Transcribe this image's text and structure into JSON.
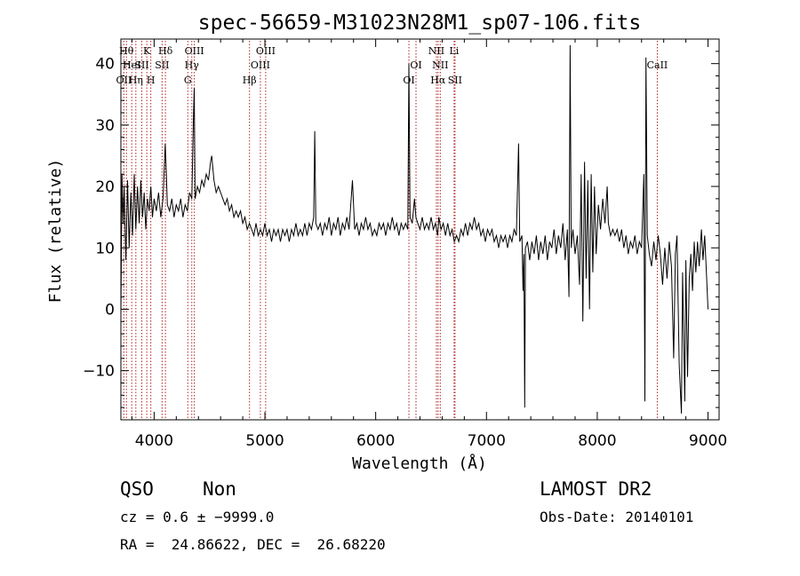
{
  "chart_data": {
    "type": "line",
    "title": "spec-56659-M31023N28M1_sp07-106.fits",
    "xlabel": "Wavelength (Å)",
    "ylabel": "Flux (relative)",
    "xlim": [
      3700,
      9100
    ],
    "ylim": [
      -18,
      44
    ],
    "x_ticks": [
      4000,
      5000,
      6000,
      7000,
      8000,
      9000
    ],
    "y_ticks": [
      -10,
      0,
      10,
      20,
      30,
      40
    ],
    "x_tick_labels": [
      "4000",
      "5000",
      "6000",
      "7000",
      "8000",
      "9000"
    ],
    "y_tick_labels": [
      "−10",
      "0",
      "10",
      "20",
      "30",
      "40"
    ],
    "grid": false,
    "line_color": "#000000",
    "marker_color": "#b22222",
    "spectrum": [
      [
        3700,
        -1
      ],
      [
        3710,
        22
      ],
      [
        3720,
        14
      ],
      [
        3730,
        20
      ],
      [
        3745,
        8
      ],
      [
        3760,
        21
      ],
      [
        3775,
        10
      ],
      [
        3790,
        19
      ],
      [
        3805,
        12
      ],
      [
        3820,
        22
      ],
      [
        3835,
        13
      ],
      [
        3850,
        20
      ],
      [
        3865,
        14
      ],
      [
        3880,
        21
      ],
      [
        3895,
        15
      ],
      [
        3910,
        19
      ],
      [
        3925,
        13
      ],
      [
        3940,
        18
      ],
      [
        3955,
        16
      ],
      [
        3970,
        20
      ],
      [
        3985,
        15
      ],
      [
        4000,
        18
      ],
      [
        4020,
        16
      ],
      [
        4040,
        19
      ],
      [
        4060,
        15
      ],
      [
        4080,
        18
      ],
      [
        4100,
        27
      ],
      [
        4120,
        17
      ],
      [
        4140,
        16
      ],
      [
        4160,
        18
      ],
      [
        4180,
        15
      ],
      [
        4200,
        17
      ],
      [
        4220,
        16
      ],
      [
        4240,
        18
      ],
      [
        4260,
        15
      ],
      [
        4280,
        17
      ],
      [
        4300,
        16
      ],
      [
        4320,
        19
      ],
      [
        4340,
        18
      ],
      [
        4355,
        31
      ],
      [
        4362,
        36
      ],
      [
        4370,
        18
      ],
      [
        4390,
        20
      ],
      [
        4410,
        19
      ],
      [
        4430,
        21
      ],
      [
        4450,
        20
      ],
      [
        4470,
        22
      ],
      [
        4490,
        21
      ],
      [
        4510,
        24
      ],
      [
        4520,
        25
      ],
      [
        4540,
        21
      ],
      [
        4560,
        19
      ],
      [
        4580,
        20
      ],
      [
        4600,
        19
      ],
      [
        4620,
        18
      ],
      [
        4640,
        17
      ],
      [
        4660,
        18
      ],
      [
        4680,
        16
      ],
      [
        4700,
        17
      ],
      [
        4720,
        15
      ],
      [
        4740,
        16
      ],
      [
        4760,
        15
      ],
      [
        4780,
        16
      ],
      [
        4800,
        14
      ],
      [
        4820,
        15
      ],
      [
        4840,
        13
      ],
      [
        4860,
        14
      ],
      [
        4880,
        13
      ],
      [
        4900,
        12
      ],
      [
        4920,
        14
      ],
      [
        4940,
        12
      ],
      [
        4960,
        13
      ],
      [
        4980,
        12
      ],
      [
        5000,
        14
      ],
      [
        5020,
        12
      ],
      [
        5040,
        13
      ],
      [
        5060,
        11
      ],
      [
        5080,
        13
      ],
      [
        5100,
        12
      ],
      [
        5120,
        13
      ],
      [
        5140,
        11
      ],
      [
        5160,
        13
      ],
      [
        5180,
        12
      ],
      [
        5200,
        13
      ],
      [
        5220,
        11
      ],
      [
        5240,
        13
      ],
      [
        5260,
        12
      ],
      [
        5280,
        14
      ],
      [
        5300,
        12
      ],
      [
        5320,
        13
      ],
      [
        5340,
        12
      ],
      [
        5360,
        14
      ],
      [
        5380,
        12
      ],
      [
        5400,
        14
      ],
      [
        5420,
        13
      ],
      [
        5440,
        15
      ],
      [
        5450,
        29
      ],
      [
        5460,
        14
      ],
      [
        5480,
        13
      ],
      [
        5500,
        14
      ],
      [
        5520,
        12
      ],
      [
        5540,
        14
      ],
      [
        5560,
        13
      ],
      [
        5580,
        15
      ],
      [
        5600,
        12
      ],
      [
        5620,
        14
      ],
      [
        5640,
        13
      ],
      [
        5660,
        15
      ],
      [
        5680,
        12
      ],
      [
        5700,
        14
      ],
      [
        5720,
        13
      ],
      [
        5740,
        15
      ],
      [
        5760,
        13
      ],
      [
        5790,
        21
      ],
      [
        5810,
        13
      ],
      [
        5830,
        14
      ],
      [
        5850,
        12
      ],
      [
        5870,
        14
      ],
      [
        5890,
        13
      ],
      [
        5910,
        15
      ],
      [
        5930,
        13
      ],
      [
        5950,
        14
      ],
      [
        5970,
        12
      ],
      [
        5990,
        13
      ],
      [
        6010,
        12
      ],
      [
        6030,
        14
      ],
      [
        6050,
        13
      ],
      [
        6070,
        14
      ],
      [
        6090,
        12
      ],
      [
        6110,
        14
      ],
      [
        6130,
        13
      ],
      [
        6150,
        15
      ],
      [
        6170,
        13
      ],
      [
        6190,
        14
      ],
      [
        6210,
        12
      ],
      [
        6230,
        14
      ],
      [
        6250,
        13
      ],
      [
        6270,
        14
      ],
      [
        6290,
        13
      ],
      [
        6300,
        40
      ],
      [
        6310,
        15
      ],
      [
        6330,
        14
      ],
      [
        6350,
        18
      ],
      [
        6363,
        15
      ],
      [
        6380,
        14
      ],
      [
        6400,
        13
      ],
      [
        6420,
        15
      ],
      [
        6440,
        13
      ],
      [
        6460,
        14
      ],
      [
        6480,
        13
      ],
      [
        6500,
        15
      ],
      [
        6520,
        13
      ],
      [
        6540,
        14
      ],
      [
        6560,
        12
      ],
      [
        6570,
        15
      ],
      [
        6590,
        13
      ],
      [
        6610,
        14
      ],
      [
        6630,
        12
      ],
      [
        6650,
        14
      ],
      [
        6670,
        12
      ],
      [
        6690,
        13
      ],
      [
        6710,
        11
      ],
      [
        6730,
        12
      ],
      [
        6750,
        11
      ],
      [
        6770,
        13
      ],
      [
        6790,
        12
      ],
      [
        6810,
        14
      ],
      [
        6830,
        12
      ],
      [
        6850,
        14
      ],
      [
        6870,
        13
      ],
      [
        6890,
        15
      ],
      [
        6910,
        13
      ],
      [
        6930,
        14
      ],
      [
        6950,
        12
      ],
      [
        6970,
        13
      ],
      [
        6990,
        11
      ],
      [
        7010,
        13
      ],
      [
        7030,
        12
      ],
      [
        7050,
        13
      ],
      [
        7070,
        11
      ],
      [
        7090,
        12
      ],
      [
        7110,
        10
      ],
      [
        7130,
        12
      ],
      [
        7150,
        11
      ],
      [
        7170,
        12
      ],
      [
        7190,
        10
      ],
      [
        7210,
        12
      ],
      [
        7230,
        11
      ],
      [
        7250,
        13
      ],
      [
        7270,
        12
      ],
      [
        7290,
        27
      ],
      [
        7300,
        11
      ],
      [
        7320,
        12
      ],
      [
        7330,
        3
      ],
      [
        7338,
        9
      ],
      [
        7345,
        -16
      ],
      [
        7352,
        10
      ],
      [
        7370,
        11
      ],
      [
        7390,
        8
      ],
      [
        7410,
        11
      ],
      [
        7430,
        9
      ],
      [
        7450,
        12
      ],
      [
        7470,
        8
      ],
      [
        7490,
        11
      ],
      [
        7510,
        9
      ],
      [
        7530,
        12
      ],
      [
        7550,
        8
      ],
      [
        7570,
        11
      ],
      [
        7590,
        10
      ],
      [
        7610,
        13
      ],
      [
        7630,
        9
      ],
      [
        7650,
        12
      ],
      [
        7670,
        10
      ],
      [
        7690,
        14
      ],
      [
        7710,
        8
      ],
      [
        7730,
        13
      ],
      [
        7745,
        2
      ],
      [
        7755,
        43
      ],
      [
        7765,
        10
      ],
      [
        7780,
        13
      ],
      [
        7800,
        9
      ],
      [
        7820,
        12
      ],
      [
        7840,
        4
      ],
      [
        7855,
        22
      ],
      [
        7870,
        -2
      ],
      [
        7885,
        24
      ],
      [
        7900,
        5
      ],
      [
        7915,
        21
      ],
      [
        7930,
        0
      ],
      [
        7945,
        22
      ],
      [
        7960,
        6
      ],
      [
        7975,
        20
      ],
      [
        7990,
        9
      ],
      [
        8010,
        17
      ],
      [
        8030,
        13
      ],
      [
        8050,
        18
      ],
      [
        8070,
        14
      ],
      [
        8090,
        20
      ],
      [
        8100,
        14
      ],
      [
        8120,
        12
      ],
      [
        8140,
        13
      ],
      [
        8160,
        12
      ],
      [
        8180,
        13
      ],
      [
        8200,
        11
      ],
      [
        8220,
        13
      ],
      [
        8240,
        10
      ],
      [
        8260,
        12
      ],
      [
        8280,
        9
      ],
      [
        8300,
        11
      ],
      [
        8320,
        10
      ],
      [
        8340,
        12
      ],
      [
        8360,
        9
      ],
      [
        8380,
        11
      ],
      [
        8400,
        10
      ],
      [
        8420,
        22
      ],
      [
        8430,
        -15
      ],
      [
        8440,
        41
      ],
      [
        8452,
        12
      ],
      [
        8470,
        9
      ],
      [
        8490,
        7
      ],
      [
        8510,
        11
      ],
      [
        8530,
        8
      ],
      [
        8550,
        12
      ],
      [
        8570,
        9
      ],
      [
        8590,
        4
      ],
      [
        8610,
        10
      ],
      [
        8630,
        5
      ],
      [
        8650,
        11
      ],
      [
        8670,
        7
      ],
      [
        8690,
        -8
      ],
      [
        8705,
        9
      ],
      [
        8720,
        12
      ],
      [
        8740,
        -9
      ],
      [
        8760,
        -17
      ],
      [
        8770,
        6
      ],
      [
        8790,
        -15
      ],
      [
        8800,
        8
      ],
      [
        8815,
        -11
      ],
      [
        8830,
        5
      ],
      [
        8845,
        9
      ],
      [
        8860,
        3
      ],
      [
        8875,
        11
      ],
      [
        8890,
        6
      ],
      [
        8905,
        11
      ],
      [
        8920,
        7
      ],
      [
        8940,
        13
      ],
      [
        8955,
        8
      ],
      [
        8970,
        12
      ],
      [
        8985,
        6
      ],
      [
        9000,
        0
      ]
    ],
    "line_markers": [
      {
        "wavelength": 3727,
        "label": "OII",
        "row": 3
      },
      {
        "wavelength": 3750,
        "label": "Hθ",
        "row": 1
      },
      {
        "wavelength": 3798,
        "label": "HeI",
        "row": 2
      },
      {
        "wavelength": 3835,
        "label": "Hη",
        "row": 3
      },
      {
        "wavelength": 3889,
        "label": "SII",
        "row": 2
      },
      {
        "wavelength": 3934,
        "label": "K",
        "row": 1
      },
      {
        "wavelength": 3970,
        "label": "H",
        "row": 3
      },
      {
        "wavelength": 4102,
        "label": "Hδ",
        "row": 1
      },
      {
        "wavelength": 4072,
        "label": "SII",
        "row": 2
      },
      {
        "wavelength": 4304,
        "label": "G",
        "row": 3
      },
      {
        "wavelength": 4340,
        "label": "Hγ",
        "row": 2
      },
      {
        "wavelength": 4363,
        "label": "OIII",
        "row": 1
      },
      {
        "wavelength": 4861,
        "label": "Hβ",
        "row": 3
      },
      {
        "wavelength": 4959,
        "label": "OIII",
        "row": 2
      },
      {
        "wavelength": 5007,
        "label": "OIII",
        "row": 1
      },
      {
        "wavelength": 6300,
        "label": "OI",
        "row": 3
      },
      {
        "wavelength": 6364,
        "label": "OI",
        "row": 2
      },
      {
        "wavelength": 6548,
        "label": "NII",
        "row": 1
      },
      {
        "wavelength": 6563,
        "label": "Hα",
        "row": 3
      },
      {
        "wavelength": 6583,
        "label": "NII",
        "row": 2
      },
      {
        "wavelength": 6708,
        "label": "Li",
        "row": 1
      },
      {
        "wavelength": 6716,
        "label": "SII",
        "row": 3
      },
      {
        "wavelength": 8542,
        "label": "CaII",
        "row": 2
      }
    ]
  },
  "info": {
    "class": "QSO",
    "subclass": "Non",
    "survey": "LAMOST DR2",
    "cz": "cz = 0.6 ± −9999.0",
    "obs_date": "Obs-Date: 20140101",
    "coords": "RA =  24.86622, DEC =  26.68220"
  }
}
